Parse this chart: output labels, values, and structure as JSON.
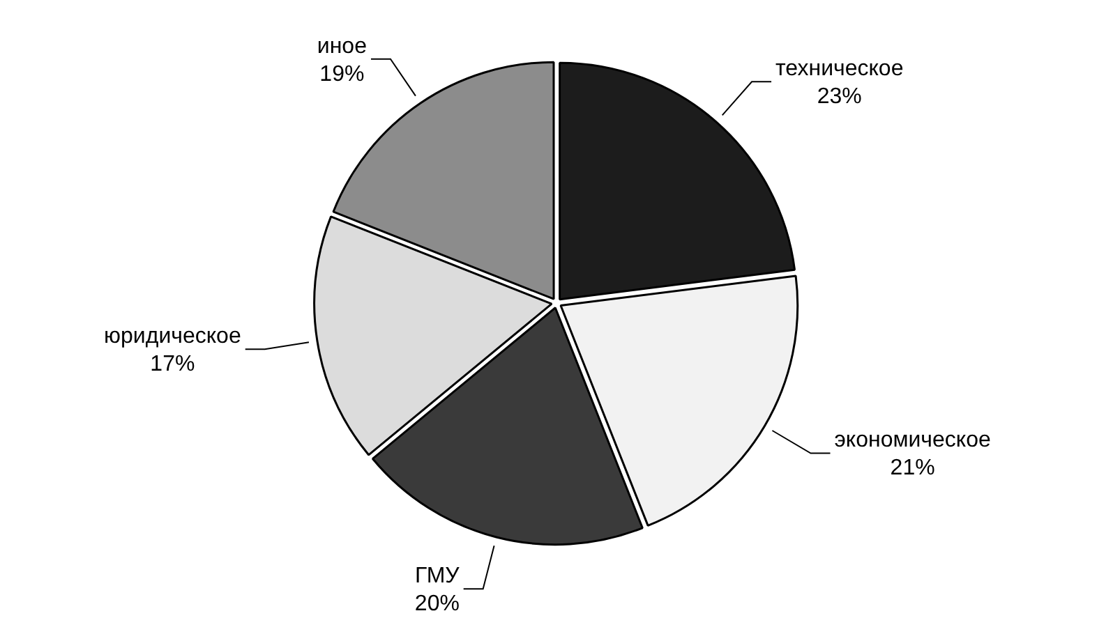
{
  "chart_data": {
    "type": "pie",
    "categories": [
      "техническое",
      "экономическое",
      "ГМУ",
      "юридическое",
      "иное"
    ],
    "values": [
      23,
      21,
      20,
      17,
      19
    ],
    "value_labels": [
      "23%",
      "21%",
      "20%",
      "17%",
      "19%"
    ],
    "colors": [
      "#1c1c1c",
      "#f2f2f2",
      "#3a3a3a",
      "#dcdcdc",
      "#8c8c8c"
    ],
    "legend": false
  }
}
